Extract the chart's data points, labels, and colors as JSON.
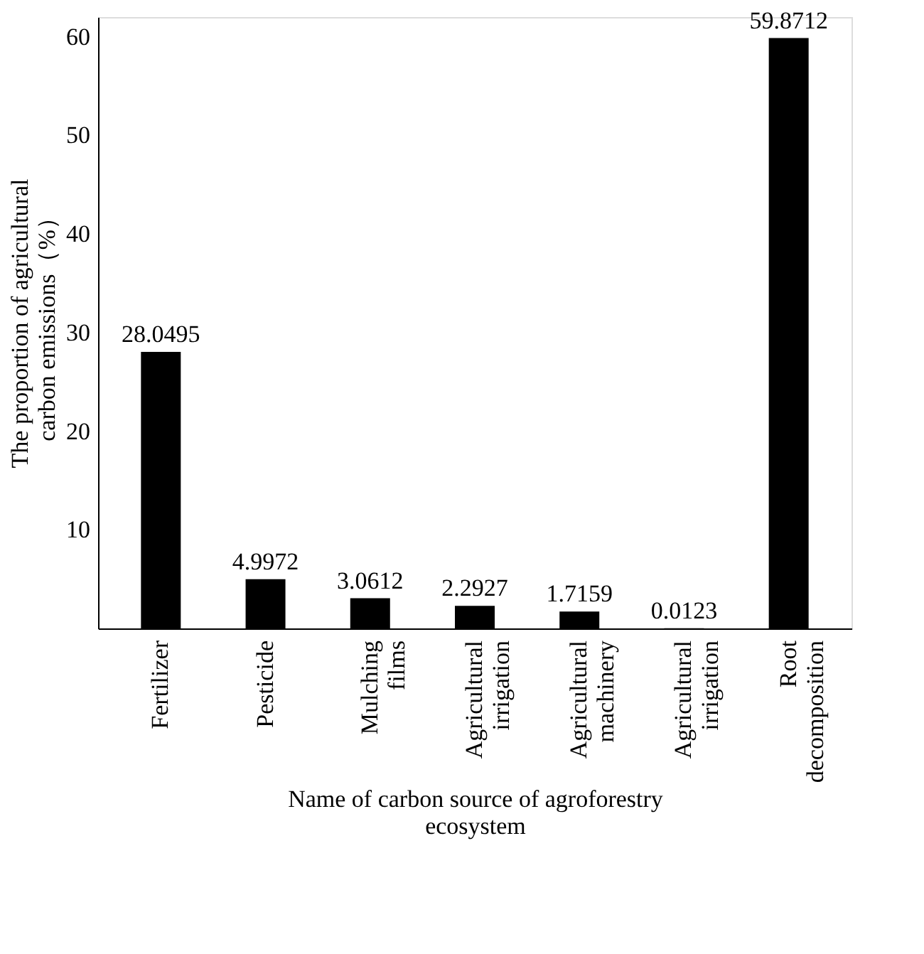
{
  "chart_data": {
    "type": "bar",
    "categories": [
      "Fertilizer",
      "Pesticide",
      "Mulching films",
      "Agricultural irrigation",
      "Agricultural machinery",
      "Agricultural irrigation",
      "Root decomposition"
    ],
    "values": [
      28.0495,
      4.9972,
      3.0612,
      2.2927,
      1.7159,
      0.0123,
      59.8712
    ],
    "color": "#000000",
    "xlabel": "Name of carbon source of agroforestry ecosystem",
    "ylabel": "The proportion of agricultural carbon emissions（%）",
    "ylim": [
      0,
      62
    ],
    "yticks": [
      10,
      20,
      30,
      40,
      50,
      60
    ],
    "data_labels": true,
    "grid": false
  }
}
